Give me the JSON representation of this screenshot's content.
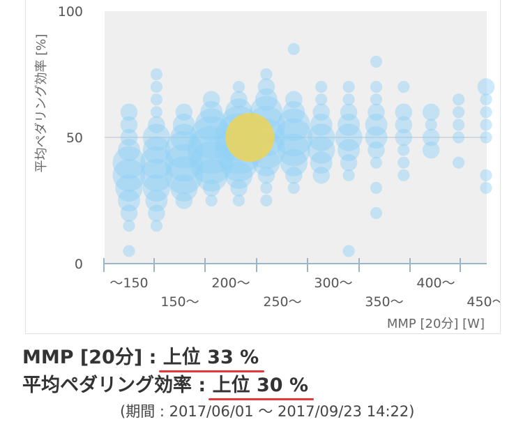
{
  "chart_data": {
    "type": "scatter",
    "subtype": "bubble",
    "title": "",
    "ylabel": "平均ペダリング効率 [%]",
    "xlabel": "MMP [20分] [W]",
    "ylim": [
      0,
      100
    ],
    "y_ticks": [
      "0",
      "50",
      "100"
    ],
    "x_categories": [
      "〜150",
      "150〜",
      "200〜",
      "250〜",
      "300〜",
      "350〜",
      "400〜",
      "450〜"
    ],
    "x_tick_labels_upper": [
      "〜150",
      "200〜",
      "300〜",
      "400〜"
    ],
    "x_tick_labels_lower": [
      "150〜",
      "250〜",
      "350〜",
      "450〜"
    ],
    "gridline_y": 50,
    "colors": {
      "bubble": "#8fd0f7",
      "highlight": "#e8d460",
      "grid": "#c8d0d8",
      "axis": "#9bb4c8",
      "plot_bg": "#efefef",
      "underline": "#e5363d"
    },
    "highlight_point": {
      "x": 250,
      "y": 50,
      "size": 10
    },
    "points": [
      {
        "x": 140,
        "y": 60,
        "size": 3
      },
      {
        "x": 140,
        "y": 55,
        "size": 3
      },
      {
        "x": 140,
        "y": 50,
        "size": 3
      },
      {
        "x": 140,
        "y": 45,
        "size": 4
      },
      {
        "x": 140,
        "y": 40,
        "size": 6
      },
      {
        "x": 140,
        "y": 35,
        "size": 6
      },
      {
        "x": 140,
        "y": 30,
        "size": 5
      },
      {
        "x": 140,
        "y": 25,
        "size": 4
      },
      {
        "x": 140,
        "y": 20,
        "size": 3
      },
      {
        "x": 140,
        "y": 15,
        "size": 2
      },
      {
        "x": 140,
        "y": 5,
        "size": 2
      },
      {
        "x": 165,
        "y": 75,
        "size": 2
      },
      {
        "x": 165,
        "y": 70,
        "size": 2
      },
      {
        "x": 165,
        "y": 65,
        "size": 2
      },
      {
        "x": 165,
        "y": 60,
        "size": 2
      },
      {
        "x": 165,
        "y": 55,
        "size": 3
      },
      {
        "x": 165,
        "y": 50,
        "size": 5
      },
      {
        "x": 165,
        "y": 45,
        "size": 5
      },
      {
        "x": 165,
        "y": 40,
        "size": 6
      },
      {
        "x": 165,
        "y": 35,
        "size": 6
      },
      {
        "x": 165,
        "y": 30,
        "size": 5
      },
      {
        "x": 165,
        "y": 25,
        "size": 4
      },
      {
        "x": 165,
        "y": 20,
        "size": 3
      },
      {
        "x": 165,
        "y": 15,
        "size": 2
      },
      {
        "x": 190,
        "y": 60,
        "size": 3
      },
      {
        "x": 190,
        "y": 55,
        "size": 4
      },
      {
        "x": 190,
        "y": 50,
        "size": 5
      },
      {
        "x": 190,
        "y": 45,
        "size": 7
      },
      {
        "x": 190,
        "y": 40,
        "size": 7
      },
      {
        "x": 190,
        "y": 35,
        "size": 7
      },
      {
        "x": 190,
        "y": 30,
        "size": 5
      },
      {
        "x": 190,
        "y": 25,
        "size": 3
      },
      {
        "x": 215,
        "y": 65,
        "size": 3
      },
      {
        "x": 215,
        "y": 60,
        "size": 4
      },
      {
        "x": 215,
        "y": 55,
        "size": 6
      },
      {
        "x": 215,
        "y": 50,
        "size": 8
      },
      {
        "x": 215,
        "y": 45,
        "size": 9
      },
      {
        "x": 215,
        "y": 40,
        "size": 8
      },
      {
        "x": 215,
        "y": 35,
        "size": 6
      },
      {
        "x": 215,
        "y": 30,
        "size": 3
      },
      {
        "x": 215,
        "y": 25,
        "size": 2
      },
      {
        "x": 240,
        "y": 70,
        "size": 2
      },
      {
        "x": 240,
        "y": 65,
        "size": 3
      },
      {
        "x": 240,
        "y": 60,
        "size": 5
      },
      {
        "x": 240,
        "y": 55,
        "size": 7
      },
      {
        "x": 240,
        "y": 50,
        "size": 9
      },
      {
        "x": 240,
        "y": 45,
        "size": 9
      },
      {
        "x": 240,
        "y": 40,
        "size": 7
      },
      {
        "x": 240,
        "y": 35,
        "size": 5
      },
      {
        "x": 240,
        "y": 30,
        "size": 3
      },
      {
        "x": 240,
        "y": 25,
        "size": 2
      },
      {
        "x": 265,
        "y": 75,
        "size": 2
      },
      {
        "x": 265,
        "y": 70,
        "size": 3
      },
      {
        "x": 265,
        "y": 65,
        "size": 4
      },
      {
        "x": 265,
        "y": 60,
        "size": 6
      },
      {
        "x": 265,
        "y": 55,
        "size": 7
      },
      {
        "x": 265,
        "y": 50,
        "size": 7
      },
      {
        "x": 265,
        "y": 45,
        "size": 7
      },
      {
        "x": 265,
        "y": 40,
        "size": 5
      },
      {
        "x": 265,
        "y": 35,
        "size": 3
      },
      {
        "x": 265,
        "y": 30,
        "size": 2
      },
      {
        "x": 265,
        "y": 25,
        "size": 2
      },
      {
        "x": 290,
        "y": 85,
        "size": 2
      },
      {
        "x": 290,
        "y": 65,
        "size": 3
      },
      {
        "x": 290,
        "y": 60,
        "size": 4
      },
      {
        "x": 290,
        "y": 55,
        "size": 6
      },
      {
        "x": 290,
        "y": 50,
        "size": 7
      },
      {
        "x": 290,
        "y": 45,
        "size": 6
      },
      {
        "x": 290,
        "y": 40,
        "size": 5
      },
      {
        "x": 290,
        "y": 35,
        "size": 3
      },
      {
        "x": 290,
        "y": 30,
        "size": 2
      },
      {
        "x": 315,
        "y": 70,
        "size": 2
      },
      {
        "x": 315,
        "y": 65,
        "size": 2
      },
      {
        "x": 315,
        "y": 60,
        "size": 3
      },
      {
        "x": 315,
        "y": 55,
        "size": 4
      },
      {
        "x": 315,
        "y": 50,
        "size": 5
      },
      {
        "x": 315,
        "y": 45,
        "size": 5
      },
      {
        "x": 315,
        "y": 40,
        "size": 4
      },
      {
        "x": 315,
        "y": 35,
        "size": 3
      },
      {
        "x": 340,
        "y": 70,
        "size": 2
      },
      {
        "x": 340,
        "y": 65,
        "size": 2
      },
      {
        "x": 340,
        "y": 60,
        "size": 3
      },
      {
        "x": 340,
        "y": 55,
        "size": 4
      },
      {
        "x": 340,
        "y": 50,
        "size": 5
      },
      {
        "x": 340,
        "y": 45,
        "size": 4
      },
      {
        "x": 340,
        "y": 40,
        "size": 3
      },
      {
        "x": 340,
        "y": 35,
        "size": 2
      },
      {
        "x": 340,
        "y": 5,
        "size": 2
      },
      {
        "x": 365,
        "y": 80,
        "size": 2
      },
      {
        "x": 365,
        "y": 70,
        "size": 2
      },
      {
        "x": 365,
        "y": 65,
        "size": 2
      },
      {
        "x": 365,
        "y": 60,
        "size": 3
      },
      {
        "x": 365,
        "y": 55,
        "size": 4
      },
      {
        "x": 365,
        "y": 50,
        "size": 4
      },
      {
        "x": 365,
        "y": 45,
        "size": 3
      },
      {
        "x": 365,
        "y": 40,
        "size": 2
      },
      {
        "x": 365,
        "y": 30,
        "size": 2
      },
      {
        "x": 365,
        "y": 20,
        "size": 2
      },
      {
        "x": 390,
        "y": 70,
        "size": 2
      },
      {
        "x": 390,
        "y": 60,
        "size": 3
      },
      {
        "x": 390,
        "y": 55,
        "size": 3
      },
      {
        "x": 390,
        "y": 50,
        "size": 3
      },
      {
        "x": 390,
        "y": 45,
        "size": 2
      },
      {
        "x": 390,
        "y": 40,
        "size": 2
      },
      {
        "x": 390,
        "y": 35,
        "size": 2
      },
      {
        "x": 415,
        "y": 60,
        "size": 3
      },
      {
        "x": 415,
        "y": 55,
        "size": 2
      },
      {
        "x": 415,
        "y": 50,
        "size": 3
      },
      {
        "x": 415,
        "y": 45,
        "size": 3
      },
      {
        "x": 440,
        "y": 65,
        "size": 2
      },
      {
        "x": 440,
        "y": 60,
        "size": 2
      },
      {
        "x": 440,
        "y": 55,
        "size": 2
      },
      {
        "x": 440,
        "y": 50,
        "size": 2
      },
      {
        "x": 440,
        "y": 40,
        "size": 2
      },
      {
        "x": 465,
        "y": 70,
        "size": 3
      },
      {
        "x": 465,
        "y": 65,
        "size": 2
      },
      {
        "x": 465,
        "y": 60,
        "size": 2
      },
      {
        "x": 465,
        "y": 55,
        "size": 2
      },
      {
        "x": 465,
        "y": 50,
        "size": 2
      },
      {
        "x": 465,
        "y": 35,
        "size": 2
      },
      {
        "x": 465,
        "y": 30,
        "size": 2
      }
    ]
  },
  "summary": {
    "mmp_label": "MMP [20分] : ",
    "mmp_value": "上位 33 %",
    "efficiency_label": "平均ペダリング効率 : ",
    "efficiency_value": "上位 30 %",
    "period": "(期間 : 2017/06/01 〜 2017/09/23 14:22)"
  }
}
